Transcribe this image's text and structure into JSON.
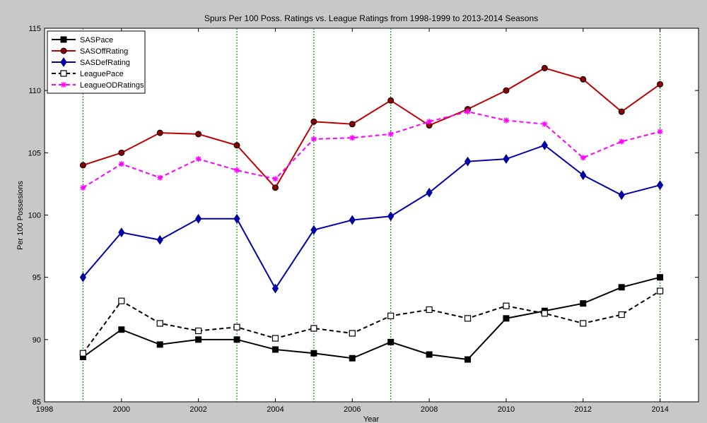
{
  "chart_data": {
    "type": "line",
    "title": "Spurs Per 100 Poss. Ratings vs. League Ratings from 1998-1999 to 2013-2014 Seasons",
    "xlabel": "Year",
    "ylabel": "Per 100 Possesions",
    "xlim": [
      1998,
      2015
    ],
    "ylim": [
      85,
      115
    ],
    "xticks": [
      "1998",
      "2000",
      "2002",
      "2004",
      "2006",
      "2008",
      "2010",
      "2012",
      "2014"
    ],
    "yticks": [
      "85",
      "90",
      "95",
      "100",
      "105",
      "110",
      "115"
    ],
    "legend_position": "top-left",
    "vertical_lines": [
      1999,
      2003,
      2005,
      2007,
      2014
    ],
    "x": [
      1999,
      2000,
      2001,
      2002,
      2003,
      2004,
      2005,
      2006,
      2007,
      2008,
      2009,
      2010,
      2011,
      2012,
      2013,
      2014
    ],
    "series": [
      {
        "name": "SASPace",
        "color": "#000000",
        "dashed": false,
        "marker": "square-filled",
        "values": [
          88.6,
          90.8,
          89.6,
          90.0,
          90.0,
          89.2,
          88.9,
          88.5,
          89.8,
          88.8,
          88.4,
          91.7,
          92.3,
          92.9,
          94.2,
          95.0
        ]
      },
      {
        "name": "SASOffRating",
        "color": "#c00000",
        "dashed": false,
        "marker": "circle",
        "values": [
          104.0,
          105.0,
          106.6,
          106.5,
          105.6,
          102.2,
          107.5,
          107.3,
          109.2,
          107.2,
          108.5,
          110.0,
          111.8,
          110.9,
          108.3,
          110.5
        ]
      },
      {
        "name": "SASDefRating",
        "color": "#0000b0",
        "dashed": false,
        "marker": "diamond",
        "values": [
          95.0,
          98.6,
          98.0,
          99.7,
          99.7,
          94.1,
          98.8,
          99.6,
          99.9,
          101.8,
          104.3,
          104.5,
          105.6,
          103.2,
          101.6,
          102.4
        ]
      },
      {
        "name": "LeaguePace",
        "color": "#000000",
        "dashed": true,
        "marker": "square-open",
        "values": [
          88.9,
          93.1,
          91.3,
          90.7,
          91.0,
          90.1,
          90.9,
          90.5,
          91.9,
          92.4,
          91.7,
          92.7,
          92.1,
          91.3,
          92.0,
          93.9
        ]
      },
      {
        "name": "LeagueODRatings",
        "color": "#ff00ff",
        "dashed": true,
        "marker": "star",
        "values": [
          102.2,
          104.1,
          103.0,
          104.5,
          103.6,
          102.9,
          106.1,
          106.2,
          106.5,
          107.5,
          108.3,
          107.6,
          107.3,
          104.6,
          105.9,
          106.7
        ]
      }
    ]
  }
}
